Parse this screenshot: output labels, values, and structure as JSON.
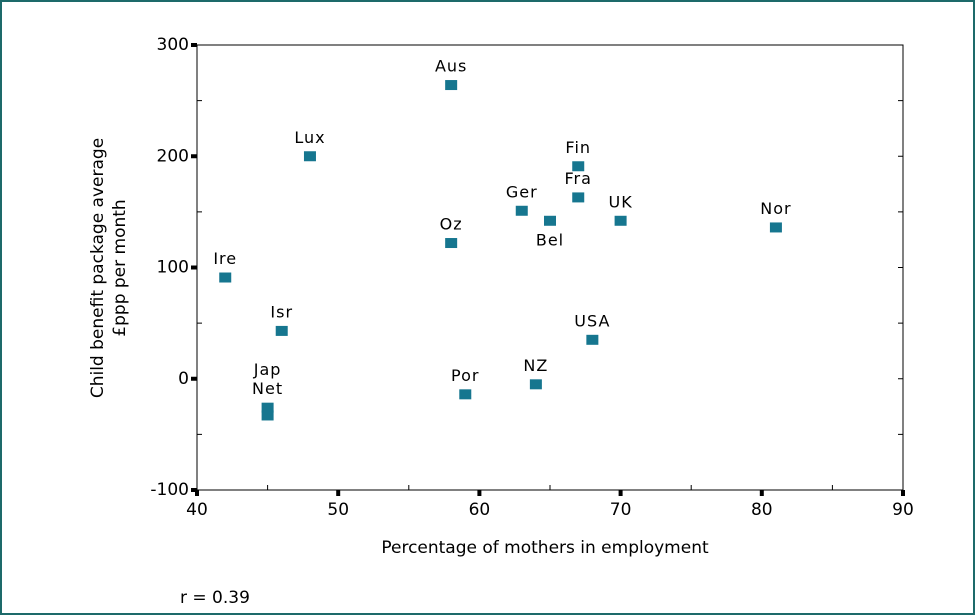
{
  "chart_data": {
    "type": "scatter",
    "x_label": "Percentage of mothers in employment",
    "y_label": [
      "Child benefit package average",
      "£ppp per month"
    ],
    "annotation": "r = 0.39",
    "labels": [
      "Aus",
      "Lux",
      "Ire",
      "Isr",
      "Jap",
      "Net",
      "Oz",
      "Por",
      "NZ",
      "Ger",
      "Bel",
      "Fin",
      "Fra",
      "UK",
      "USA",
      "Nor"
    ],
    "x": [
      58,
      48,
      42,
      46,
      45,
      45,
      58,
      59,
      64,
      63,
      65,
      67,
      67,
      70,
      68,
      81
    ],
    "values": [
      264,
      200,
      91,
      43,
      -26,
      -33,
      122,
      -14,
      -5,
      151,
      142,
      191,
      163,
      142,
      35,
      136
    ],
    "color": "#16768f",
    "xlim": [
      40,
      90
    ],
    "xticks": [
      40,
      50,
      60,
      70,
      80,
      90
    ],
    "ylim": [
      -100,
      300
    ],
    "yticks": [
      -100,
      0,
      100,
      200,
      300
    ]
  }
}
